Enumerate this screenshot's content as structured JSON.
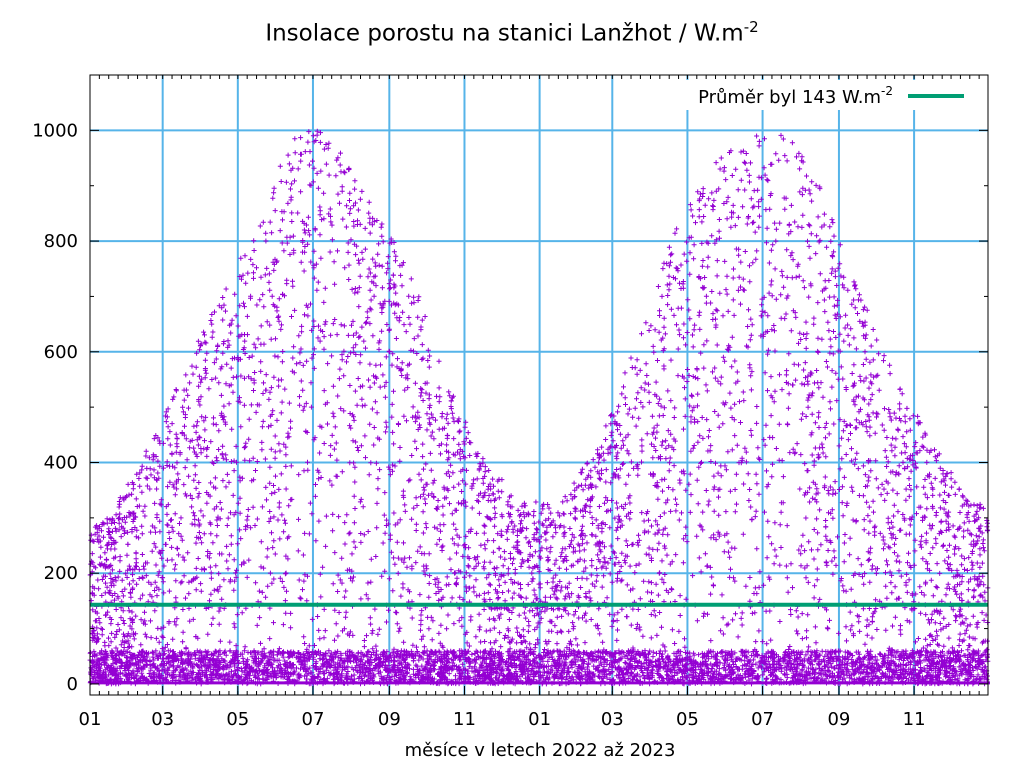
{
  "chart_data": {
    "type": "scatter",
    "title": "Insolace porostu na stanici Lanžhot / W.m",
    "title_sup": "-2",
    "xlabel": "měsíce v letech 2022 až 2023",
    "ylabel": "",
    "xlim": [
      "2022-01-01",
      "2023-12-31"
    ],
    "ylim": [
      -20,
      1100
    ],
    "x_tick_labels": [
      "01",
      "03",
      "05",
      "07",
      "09",
      "11",
      "01",
      "03",
      "05",
      "07",
      "09",
      "11"
    ],
    "x_tick_dates": [
      "2022-01-01",
      "2022-03-01",
      "2022-05-01",
      "2022-07-01",
      "2022-09-01",
      "2022-11-01",
      "2023-01-01",
      "2023-03-01",
      "2023-05-01",
      "2023-07-01",
      "2023-09-01",
      "2023-11-01"
    ],
    "y_ticks": [
      0,
      200,
      400,
      600,
      800,
      1000
    ],
    "grid": true,
    "legend_position": "top-right",
    "series": [
      {
        "name": "",
        "marker": "+",
        "color": "#9400d3",
        "description_envelope_max": [
          {
            "x": "2022-01",
            "y": 300
          },
          {
            "x": "2022-02",
            "y": 420
          },
          {
            "x": "2022-03",
            "y": 560
          },
          {
            "x": "2022-04",
            "y": 710
          },
          {
            "x": "2022-05",
            "y": 830
          },
          {
            "x": "2022-06",
            "y": 1010
          },
          {
            "x": "2022-07",
            "y": 990
          },
          {
            "x": "2022-08",
            "y": 870
          },
          {
            "x": "2022-09",
            "y": 760
          },
          {
            "x": "2022-10",
            "y": 550
          },
          {
            "x": "2022-11",
            "y": 410
          },
          {
            "x": "2022-12",
            "y": 330
          },
          {
            "x": "2023-01",
            "y": 330
          },
          {
            "x": "2023-02",
            "y": 420
          },
          {
            "x": "2023-03",
            "y": 600
          },
          {
            "x": "2023-04",
            "y": 800
          },
          {
            "x": "2023-05",
            "y": 940
          },
          {
            "x": "2023-06",
            "y": 980
          },
          {
            "x": "2023-07",
            "y": 1015
          },
          {
            "x": "2023-08",
            "y": 900
          },
          {
            "x": "2023-09",
            "y": 720
          },
          {
            "x": "2023-10",
            "y": 560
          },
          {
            "x": "2023-11",
            "y": 440
          },
          {
            "x": "2023-12",
            "y": 330
          }
        ]
      },
      {
        "name": "Průměr byl 143 W.m",
        "name_sup": "-2",
        "type": "line",
        "color": "#009e73",
        "value": 143
      }
    ]
  }
}
